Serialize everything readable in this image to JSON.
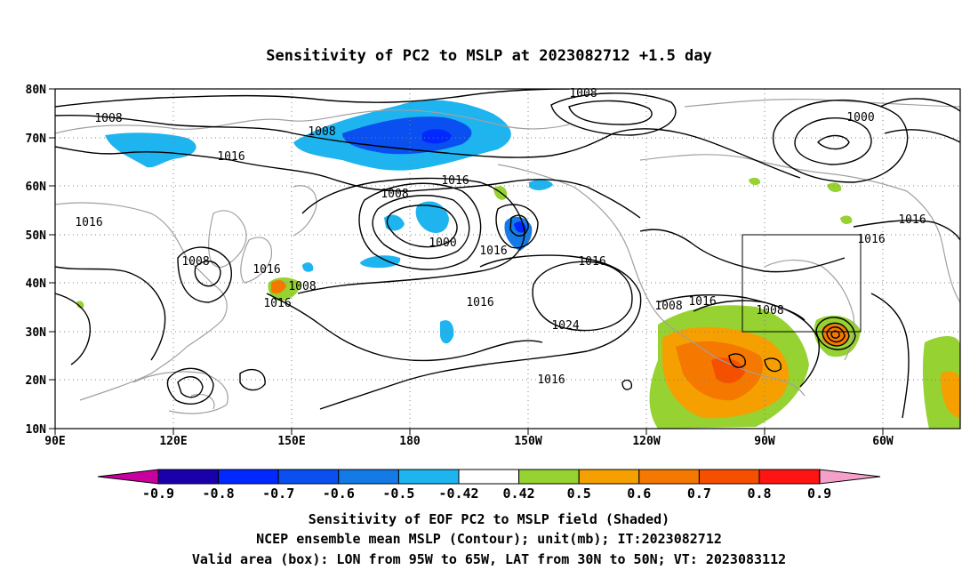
{
  "title": "Sensitivity of PC2 to MSLP at 2023082712 +1.5 day",
  "y_ticks": [
    "80N",
    "70N",
    "60N",
    "50N",
    "40N",
    "30N",
    "20N",
    "10N"
  ],
  "x_ticks": [
    "90E",
    "120E",
    "150E",
    "180",
    "150W",
    "120W",
    "90W",
    "60W"
  ],
  "contour_labels": [
    "1008",
    "1008",
    "1000",
    "1016",
    "1016",
    "1016",
    "1008",
    "1000",
    "1016",
    "1016",
    "1016",
    "1008",
    "1016",
    "1008",
    "1016",
    "1016",
    "1016",
    "1024",
    "1016",
    "1008",
    "1016",
    "1008",
    "1008",
    "1016"
  ],
  "colorbar": {
    "labels": [
      "-0.9",
      "-0.8",
      "-0.7",
      "-0.6",
      "-0.5",
      "-0.42",
      "0.42",
      "0.5",
      "0.6",
      "0.7",
      "0.8",
      "0.9"
    ],
    "colors": [
      "#1a00aa",
      "#0028ff",
      "#0a50f0",
      "#147ae6",
      "#1eb4f0",
      "#ffffff",
      "#96d232",
      "#f5a000",
      "#f57800",
      "#f55000",
      "#ff1414"
    ],
    "under_color": "#c800a0",
    "over_color": "#f5a0c8"
  },
  "footer": [
    "Sensitivity of EOF PC2 to MSLP field (Shaded)",
    "NCEP ensemble mean MSLP (Contour); unit(mb); IT:2023082712",
    "Valid area (box): LON from 95W to 65W, LAT from 30N to 50N; VT: 2023083112"
  ],
  "valid_area": {
    "lon_min": -95,
    "lon_max": -65,
    "lat_min": 30,
    "lat_max": 50
  },
  "map_extent": {
    "lon_min": 90,
    "lon_max": 320,
    "lat_min": 10,
    "lat_max": 80
  },
  "colors": {
    "contour": "#000000",
    "coast": "#a0a0a0",
    "grid": "#808080"
  }
}
